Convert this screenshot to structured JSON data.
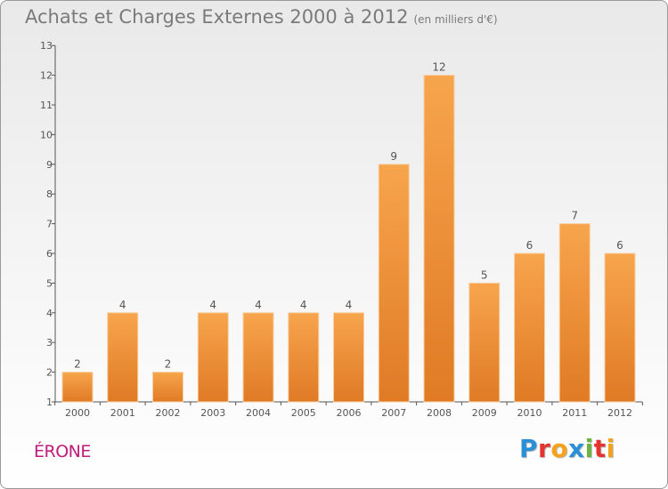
{
  "title": "Achats et Charges Externes 2000 à 2012",
  "unit": "(en milliers d'€)",
  "commune": "ÉRONE",
  "logo": {
    "text": "Proxiti"
  },
  "colors": {
    "bar": "#f39c3c",
    "bar_dark": "#d9762a",
    "commune": "#c01a7a",
    "title": "#7a7a7a"
  },
  "chart_data": {
    "type": "bar",
    "categories": [
      "2000",
      "2001",
      "2002",
      "2003",
      "2004",
      "2005",
      "2006",
      "2007",
      "2008",
      "2009",
      "2010",
      "2011",
      "2012"
    ],
    "values": [
      2,
      4,
      2,
      4,
      4,
      4,
      4,
      9,
      12,
      5,
      6,
      7,
      6
    ],
    "ylim": [
      1,
      13
    ],
    "yticks": [
      1,
      2,
      3,
      4,
      5,
      6,
      7,
      8,
      9,
      10,
      11,
      12,
      13
    ],
    "grid": false,
    "title": "Achats et Charges Externes 2000 à 2012",
    "xlabel": "",
    "ylabel": ""
  }
}
